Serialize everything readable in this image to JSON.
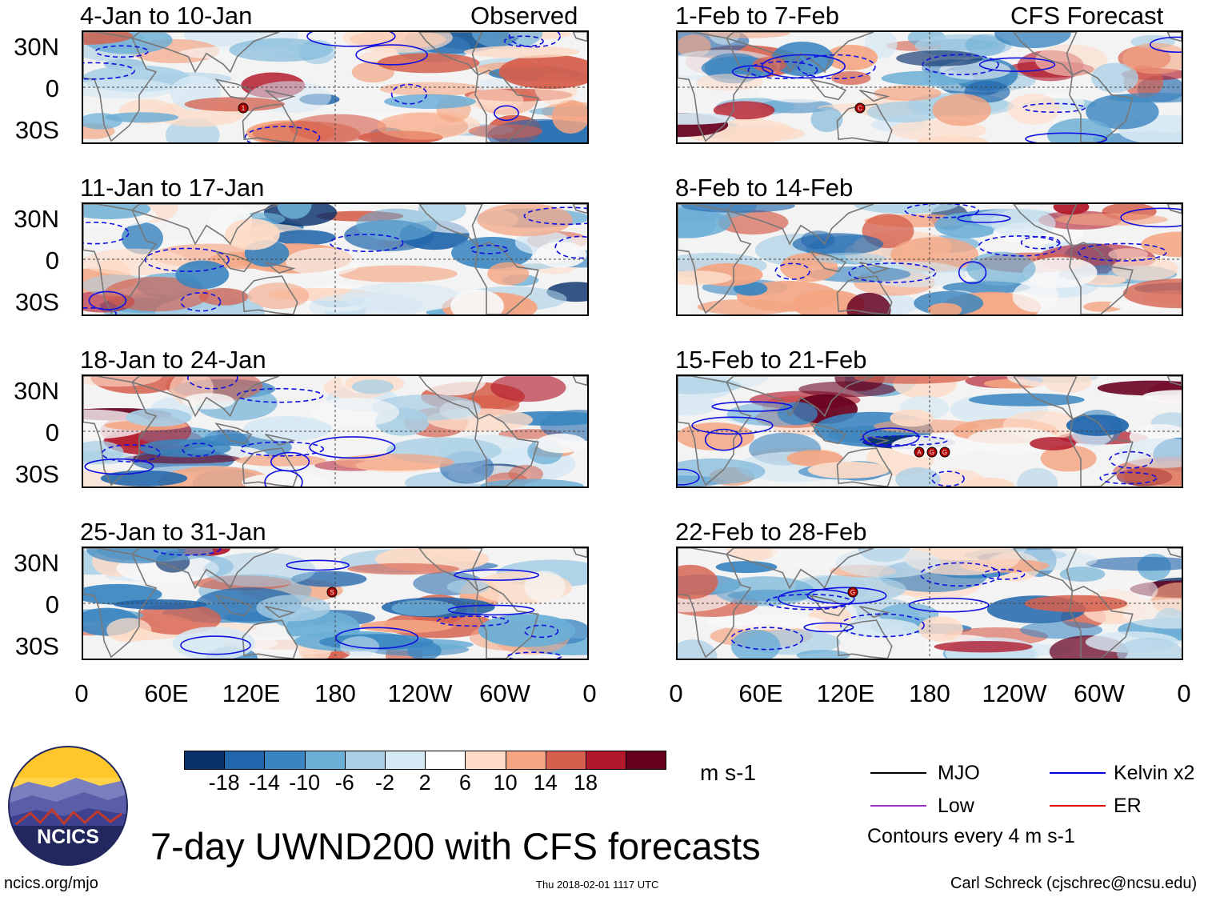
{
  "figure": {
    "title": "7-day UWND200 with CFS forecasts",
    "site": "ncics.org/mjo",
    "timestamp": "Thu 2018-02-01 1117 UTC",
    "author": "Carl Schreck (cjschrec@ncsu.edu)",
    "logo_text": "NCICS",
    "left_column_label": "Observed",
    "right_column_label": "CFS Forecast",
    "contour_note": "Contours every 4 m s-1"
  },
  "chart_data": {
    "type": "heatmap",
    "variable": "200-hPa zonal wind anomaly (UWND200)",
    "units": "m s-1",
    "x_ticks": [
      "0",
      "60E",
      "120E",
      "180",
      "120W",
      "60W",
      "0"
    ],
    "y_ticks": [
      "30N",
      "0",
      "30S"
    ],
    "panels": [
      {
        "title": "4-Jan to 10-Jan",
        "type": "Observed",
        "storm_markers": [
          "1"
        ]
      },
      {
        "title": "11-Jan to 17-Jan",
        "type": "Observed",
        "storm_markers": []
      },
      {
        "title": "18-Jan to 24-Jan",
        "type": "Observed",
        "storm_markers": []
      },
      {
        "title": "25-Jan to 31-Jan",
        "type": "Observed",
        "storm_markers": [
          "S"
        ]
      },
      {
        "title": "1-Feb to 7-Feb",
        "type": "CFS Forecast",
        "storm_markers": [
          "C"
        ]
      },
      {
        "title": "8-Feb to 14-Feb",
        "type": "CFS Forecast",
        "storm_markers": []
      },
      {
        "title": "15-Feb to 21-Feb",
        "type": "CFS Forecast",
        "storm_markers": [
          "A",
          "G",
          "G"
        ]
      },
      {
        "title": "22-Feb to 28-Feb",
        "type": "CFS Forecast",
        "storm_markers": [
          "G"
        ]
      }
    ],
    "colorbar": {
      "ticks": [
        "-18",
        "-14",
        "-10",
        "-6",
        "-2",
        "2",
        "6",
        "10",
        "14",
        "18"
      ],
      "colors": [
        "#08306b",
        "#2166ac",
        "#3a85c0",
        "#6baed6",
        "#a9cfe5",
        "#d6e8f3",
        "#ffffff",
        "#fddbc7",
        "#f4a582",
        "#d6604d",
        "#b2182b",
        "#67001f"
      ]
    },
    "legend": [
      {
        "label": "MJO",
        "color": "#000000"
      },
      {
        "label": "Kelvin x2",
        "color": "#0000e0"
      },
      {
        "label": "Low",
        "color": "#9933cc"
      },
      {
        "label": "ER",
        "color": "#e00000"
      }
    ]
  }
}
